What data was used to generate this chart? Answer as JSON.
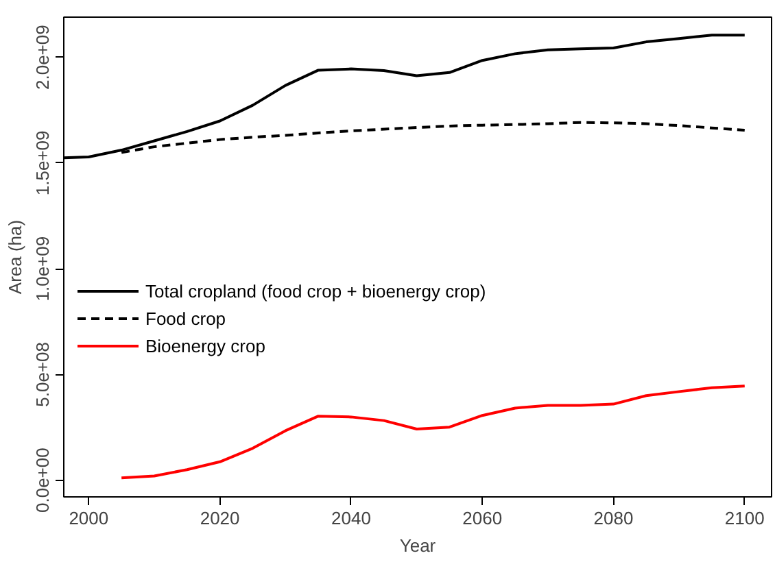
{
  "chart_data": {
    "type": "line",
    "xlabel": "Year",
    "ylabel": "Area (ha)",
    "xlim": [
      1996.2,
      2104.1
    ],
    "ylim": [
      -79000000,
      2190000000
    ],
    "xticks": [
      2000,
      2020,
      2040,
      2060,
      2080,
      2100
    ],
    "yticks": [
      {
        "value": 0,
        "label": "0.0e+00"
      },
      {
        "value": 500000000,
        "label": "5.0e+08"
      },
      {
        "value": 1000000000,
        "label": "1.0e+09"
      },
      {
        "value": 1500000000,
        "label": "1.5e+09"
      },
      {
        "value": 2000000000,
        "label": "2.0e+09"
      }
    ],
    "grid": false,
    "legend": "left",
    "marker": "none",
    "series": [
      {
        "name": "Total cropland (food crop + bioenergy crop)",
        "color": "#000000",
        "line_style": "solid",
        "x": [
          1996.2,
          2000,
          2005,
          2010,
          2015,
          2020,
          2025,
          2030,
          2035,
          2040,
          2045,
          2050,
          2055,
          2060,
          2065,
          2070,
          2075,
          2080,
          2085,
          2090,
          2095,
          2100
        ],
        "values": [
          1525000000,
          1529000000,
          1561000000,
          1605000000,
          1649000000,
          1699000000,
          1773000000,
          1867000000,
          1939000000,
          1945000000,
          1937000000,
          1913000000,
          1928000000,
          1985000000,
          2017000000,
          2035000000,
          2040000000,
          2044000000,
          2073000000,
          2089000000,
          2105000000,
          2105000000
        ]
      },
      {
        "name": "Food crop",
        "color": "#000000",
        "line_style": "dashed",
        "x": [
          2005,
          2010,
          2015,
          2020,
          2025,
          2030,
          2035,
          2040,
          2045,
          2050,
          2055,
          2060,
          2065,
          2070,
          2075,
          2080,
          2085,
          2090,
          2095,
          2100
        ],
        "values": [
          1550000000,
          1577000000,
          1594000000,
          1611000000,
          1622000000,
          1631000000,
          1642000000,
          1652000000,
          1660000000,
          1668000000,
          1675000000,
          1679000000,
          1682000000,
          1686000000,
          1692000000,
          1690000000,
          1686000000,
          1677000000,
          1666000000,
          1655000000
        ]
      },
      {
        "name": "Bioenergy crop",
        "color": "#ff0000",
        "line_style": "solid",
        "x": [
          2005,
          2010,
          2015,
          2020,
          2025,
          2030,
          2035,
          2040,
          2045,
          2050,
          2055,
          2060,
          2065,
          2070,
          2075,
          2080,
          2085,
          2090,
          2095,
          2100
        ],
        "values": [
          11000000,
          20000000,
          50000000,
          87000000,
          151000000,
          234000000,
          303000000,
          299000000,
          282000000,
          242000000,
          251000000,
          306000000,
          341000000,
          354000000,
          354000000,
          360000000,
          400000000,
          419000000,
          437000000,
          445000000
        ]
      }
    ]
  }
}
